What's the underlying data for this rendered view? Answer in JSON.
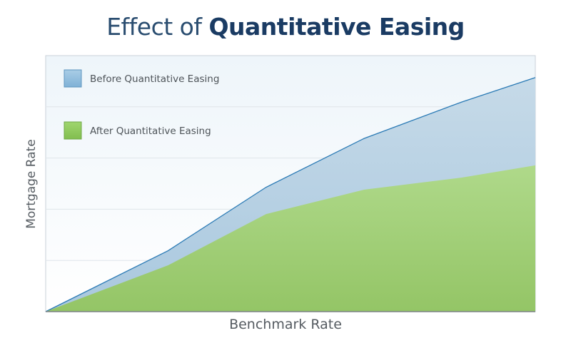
{
  "title": {
    "prefix": "Effect of",
    "emphasis": "Quantitative Easing"
  },
  "chart_data": {
    "type": "area",
    "title": "Effect of Quantitative Easing",
    "xlabel": "Benchmark Rate",
    "ylabel": "Mortgage Rate",
    "x": [
      0,
      2.5,
      4.5,
      6.5,
      8.5,
      10
    ],
    "xlim": [
      0,
      10
    ],
    "ylim": [
      0,
      10.5
    ],
    "grid": true,
    "legend_position": "top-left",
    "series": [
      {
        "name": "Before Quantitative Easing",
        "values": [
          0,
          2.5,
          5.1,
          7.1,
          8.6,
          9.6
        ],
        "color": "#b7d0e2",
        "line_color": "#2a7ab5"
      },
      {
        "name": "After Quantitative Easing",
        "values": [
          0,
          1.9,
          4.0,
          5.0,
          5.5,
          6.0
        ],
        "color": "#a5d27c"
      }
    ]
  }
}
